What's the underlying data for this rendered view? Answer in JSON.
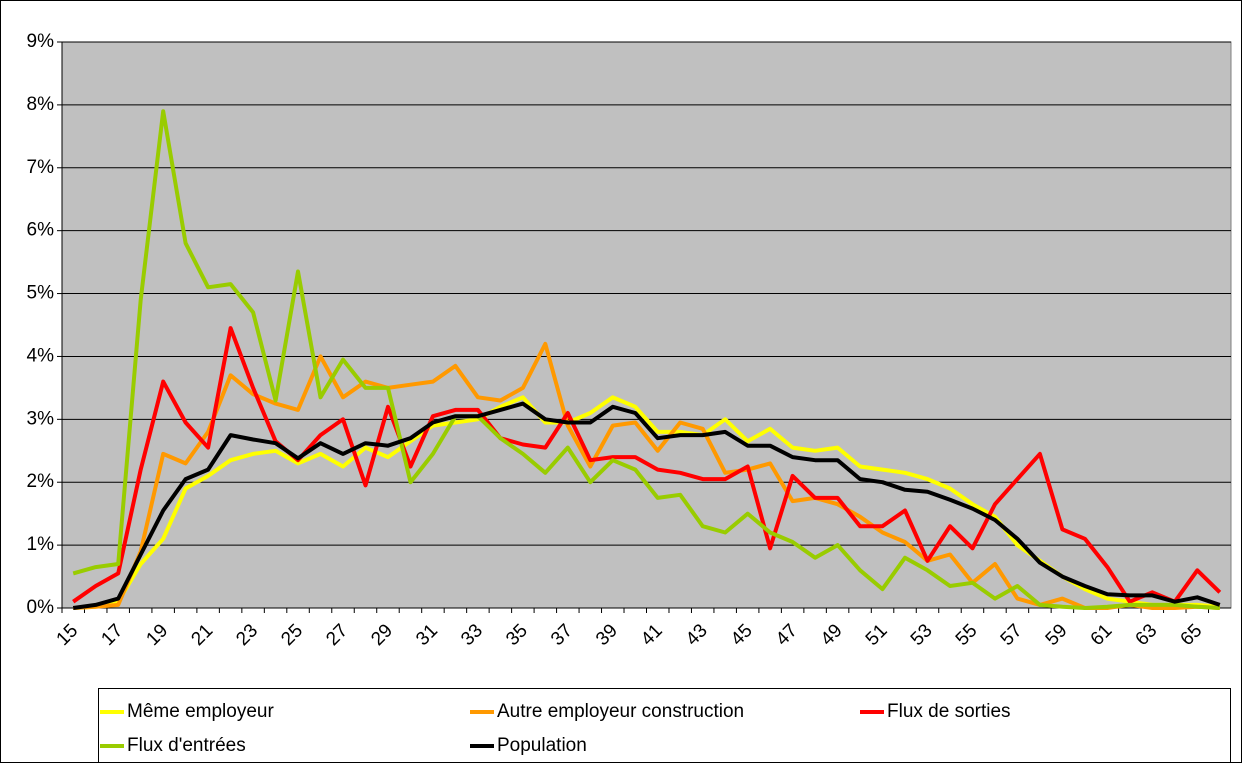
{
  "chart_data": {
    "type": "line",
    "categories": [
      "15",
      null,
      "17",
      null,
      "19",
      null,
      "21",
      null,
      "23",
      null,
      "25",
      null,
      "27",
      null,
      "29",
      null,
      "31",
      null,
      "33",
      null,
      "35",
      null,
      "37",
      null,
      "39",
      null,
      "41",
      null,
      "43",
      null,
      "45",
      null,
      "47",
      null,
      "49",
      null,
      "51",
      null,
      "53",
      null,
      "55",
      null,
      "57",
      null,
      "59",
      null,
      "61",
      null,
      "63",
      null,
      "65",
      null
    ],
    "series": [
      {
        "name": "Même employeur",
        "color": "#ffff00",
        "values": [
          0,
          0.02,
          0.1,
          0.7,
          1.1,
          1.9,
          2.1,
          2.35,
          2.45,
          2.5,
          2.3,
          2.45,
          2.25,
          2.55,
          2.4,
          2.65,
          2.9,
          2.95,
          3.0,
          3.2,
          3.35,
          2.95,
          2.95,
          3.1,
          3.35,
          3.2,
          2.8,
          2.8,
          2.75,
          3.0,
          2.65,
          2.85,
          2.55,
          2.5,
          2.55,
          2.25,
          2.2,
          2.15,
          2.05,
          1.9,
          1.65,
          1.45,
          1.0,
          0.75,
          0.5,
          0.3,
          0.15,
          0.1,
          0.05,
          0.05,
          0.05,
          0.02
        ]
      },
      {
        "name": "Autre employeur construction",
        "color": "#ff9900",
        "values": [
          0,
          0.02,
          0.05,
          0.9,
          2.45,
          2.3,
          2.8,
          3.7,
          3.4,
          3.25,
          3.15,
          4.0,
          3.35,
          3.6,
          3.5,
          3.55,
          3.6,
          3.85,
          3.35,
          3.3,
          3.5,
          4.2,
          2.9,
          2.25,
          2.9,
          2.95,
          2.5,
          2.95,
          2.85,
          2.15,
          2.2,
          2.3,
          1.7,
          1.75,
          1.65,
          1.45,
          1.2,
          1.05,
          0.75,
          0.85,
          0.4,
          0.7,
          0.15,
          0.05,
          0.15,
          0,
          0,
          0.05,
          0,
          0,
          0.02,
          0
        ]
      },
      {
        "name": "Flux de sorties",
        "color": "#ff0000",
        "values": [
          0.1,
          0.35,
          0.55,
          2.2,
          3.6,
          2.95,
          2.55,
          4.45,
          3.5,
          2.65,
          2.35,
          2.75,
          3.0,
          1.95,
          3.2,
          2.25,
          3.05,
          3.15,
          3.15,
          2.7,
          2.6,
          2.55,
          3.1,
          2.35,
          2.4,
          2.4,
          2.2,
          2.15,
          2.05,
          2.05,
          2.25,
          0.95,
          2.1,
          1.75,
          1.75,
          1.3,
          1.3,
          1.55,
          0.75,
          1.3,
          0.95,
          1.65,
          2.05,
          2.45,
          1.25,
          1.1,
          0.65,
          0.1,
          0.25,
          0.1,
          0.6,
          0.25
        ]
      },
      {
        "name": "Flux d'entrées",
        "color": "#99cc00",
        "values": [
          0.55,
          0.65,
          0.7,
          4.9,
          7.9,
          5.8,
          5.1,
          5.15,
          4.7,
          3.3,
          5.35,
          3.35,
          3.95,
          3.5,
          3.5,
          2.0,
          2.45,
          3.05,
          3.05,
          2.7,
          2.45,
          2.15,
          2.55,
          2.0,
          2.35,
          2.2,
          1.75,
          1.8,
          1.3,
          1.2,
          1.5,
          1.2,
          1.05,
          0.8,
          1.0,
          0.6,
          0.3,
          0.8,
          0.6,
          0.35,
          0.4,
          0.15,
          0.35,
          0.05,
          0.02,
          0,
          0.02,
          0.05,
          0.05,
          0.05,
          0.02,
          0
        ]
      },
      {
        "name": "Population",
        "color": "#000000",
        "values": [
          0,
          0.05,
          0.15,
          0.85,
          1.55,
          2.05,
          2.2,
          2.75,
          2.68,
          2.62,
          2.38,
          2.62,
          2.45,
          2.62,
          2.58,
          2.7,
          2.95,
          3.05,
          3.05,
          3.15,
          3.25,
          3.0,
          2.95,
          2.95,
          3.2,
          3.1,
          2.7,
          2.75,
          2.75,
          2.8,
          2.58,
          2.58,
          2.4,
          2.35,
          2.35,
          2.05,
          2.0,
          1.88,
          1.85,
          1.72,
          1.58,
          1.4,
          1.1,
          0.72,
          0.5,
          0.35,
          0.22,
          0.2,
          0.2,
          0.1,
          0.17,
          0.05
        ]
      }
    ],
    "ylim": [
      0,
      9
    ],
    "yticks": [
      {
        "value": 0,
        "label": "0%"
      },
      {
        "value": 1,
        "label": "1%"
      },
      {
        "value": 2,
        "label": "2%"
      },
      {
        "value": 3,
        "label": "3%"
      },
      {
        "value": 4,
        "label": "4%"
      },
      {
        "value": 5,
        "label": "5%"
      },
      {
        "value": 6,
        "label": "6%"
      },
      {
        "value": 7,
        "label": "7%"
      },
      {
        "value": 8,
        "label": "8%"
      },
      {
        "value": 9,
        "label": "9%"
      }
    ],
    "grid": true,
    "legend": "bottom"
  }
}
